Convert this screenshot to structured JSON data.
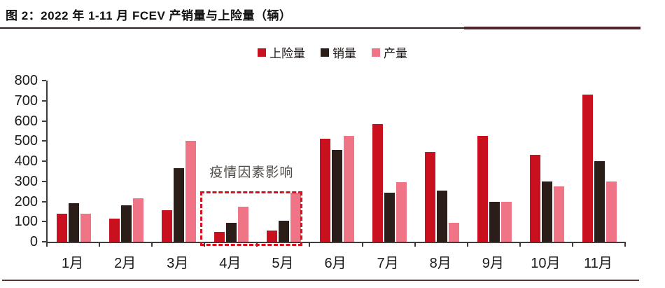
{
  "header": {
    "title": "图 2：2022 年 1-11 月 FCEV 产销量与上险量（辆）"
  },
  "legend": {
    "items": [
      {
        "key": "insured-volume",
        "label": "上险量",
        "color": "#c9101f"
      },
      {
        "key": "sales-volume",
        "label": "销量",
        "color": "#2b1d18"
      },
      {
        "key": "production-volume",
        "label": "产量",
        "color": "#ef7586"
      }
    ]
  },
  "chart_data": {
    "type": "bar",
    "title": "2022 年 1-11 月 FCEV 产销量与上险量（辆）",
    "unit": "辆",
    "categories": [
      "1月",
      "2月",
      "3月",
      "4月",
      "5月",
      "6月",
      "7月",
      "8月",
      "9月",
      "10月",
      "11月"
    ],
    "series": [
      {
        "key": "insured-volume",
        "name": "上险量",
        "color": "#c9101f",
        "values": [
          140,
          115,
          155,
          50,
          55,
          510,
          585,
          445,
          525,
          430,
          730
        ]
      },
      {
        "key": "sales-volume",
        "name": "销量",
        "color": "#2b1d18",
        "values": [
          190,
          180,
          365,
          95,
          105,
          455,
          245,
          255,
          200,
          300,
          400
        ]
      },
      {
        "key": "production-volume",
        "name": "产量",
        "color": "#ef7586",
        "values": [
          140,
          215,
          500,
          175,
          245,
          525,
          295,
          95,
          200,
          275,
          300
        ]
      }
    ],
    "ylim": [
      0,
      800
    ],
    "ytick_step": 100,
    "grid": false,
    "legend_position": "top-center",
    "annotation": {
      "text": "疫情因素影响",
      "box_categories": [
        "4月",
        "5月"
      ],
      "box_top_value": 250,
      "box_color": "#d8101e"
    }
  },
  "colors": {
    "accent_red": "#d8101e",
    "axis": "#3d3d3d",
    "title_rule_thin": "#2a2022",
    "title_rule_thick": "#53262c",
    "bottom_rule": "#5a322e",
    "annotation_text": "#4f4a46"
  }
}
